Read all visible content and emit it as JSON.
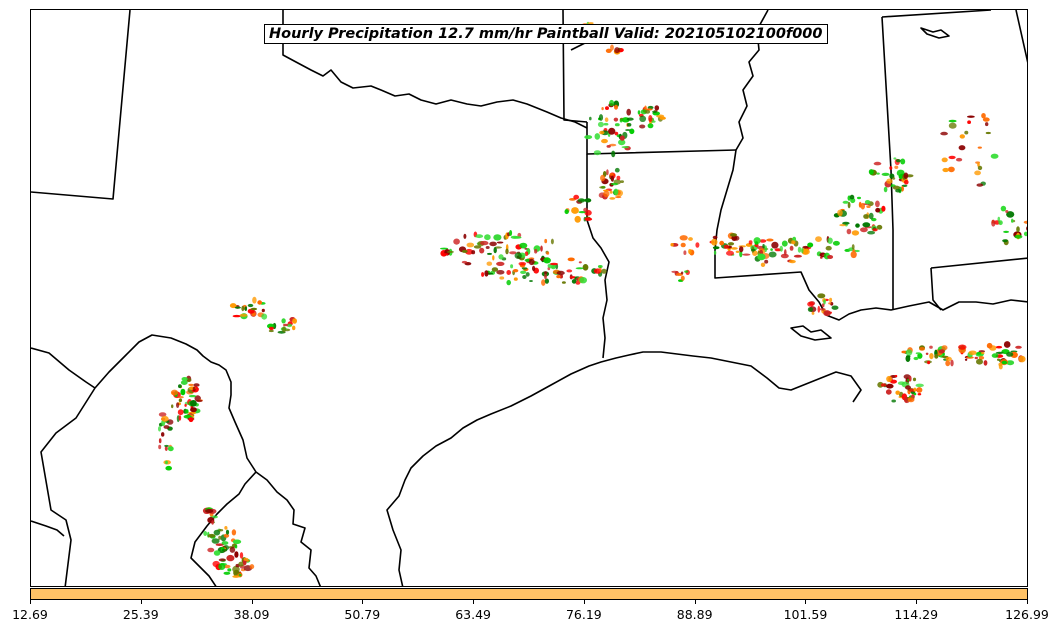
{
  "title": "Hourly Precipitation 12.7 mm/hr Paintball Valid: 202105102100f000",
  "colorbar": {
    "color": "#FFC266",
    "ticks": [
      "12.69",
      "25.39",
      "38.09",
      "50.79",
      "63.49",
      "76.19",
      "88.89",
      "101.59",
      "114.29",
      "126.99"
    ]
  },
  "palette": [
    "#FF0000",
    "#FF6A00",
    "#FF9900",
    "#00CC00",
    "#33DD33",
    "#007700",
    "#667700",
    "#8B0000",
    "#CC2222"
  ]
}
